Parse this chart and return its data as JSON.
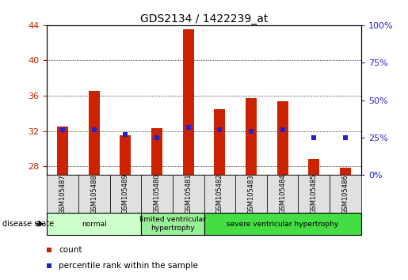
{
  "title": "GDS2134 / 1422239_at",
  "samples": [
    "GSM105487",
    "GSM105488",
    "GSM105489",
    "GSM105480",
    "GSM105481",
    "GSM105482",
    "GSM105483",
    "GSM105484",
    "GSM105485",
    "GSM105486"
  ],
  "counts": [
    32.5,
    36.5,
    31.5,
    32.3,
    43.5,
    34.5,
    35.7,
    35.4,
    28.8,
    27.8
  ],
  "percentile_values": [
    30,
    30,
    27,
    25,
    32,
    30,
    29,
    30,
    25,
    25
  ],
  "bar_color": "#cc2200",
  "percentile_color": "#2222cc",
  "ylim_left": [
    27,
    44
  ],
  "ylim_right": [
    0,
    100
  ],
  "yticks_left": [
    28,
    32,
    36,
    40,
    44
  ],
  "yticks_right": [
    0,
    25,
    50,
    75,
    100
  ],
  "groups": [
    {
      "label": "normal",
      "start": 0,
      "end": 3,
      "color": "#ccffcc"
    },
    {
      "label": "limited ventricular\nhypertrophy",
      "start": 3,
      "end": 5,
      "color": "#99ee99"
    },
    {
      "label": "severe ventricular hypertrophy",
      "start": 5,
      "end": 10,
      "color": "#44dd44"
    }
  ],
  "disease_state_label": "disease state",
  "legend_count": "count",
  "legend_percentile": "percentile rank within the sample",
  "bar_width": 0.35,
  "background_color": "#ffffff",
  "plot_bg_color": "#ffffff",
  "tick_label_color_left": "#cc2200",
  "tick_label_color_right": "#2222cc",
  "cell_color": "#e0e0e0"
}
